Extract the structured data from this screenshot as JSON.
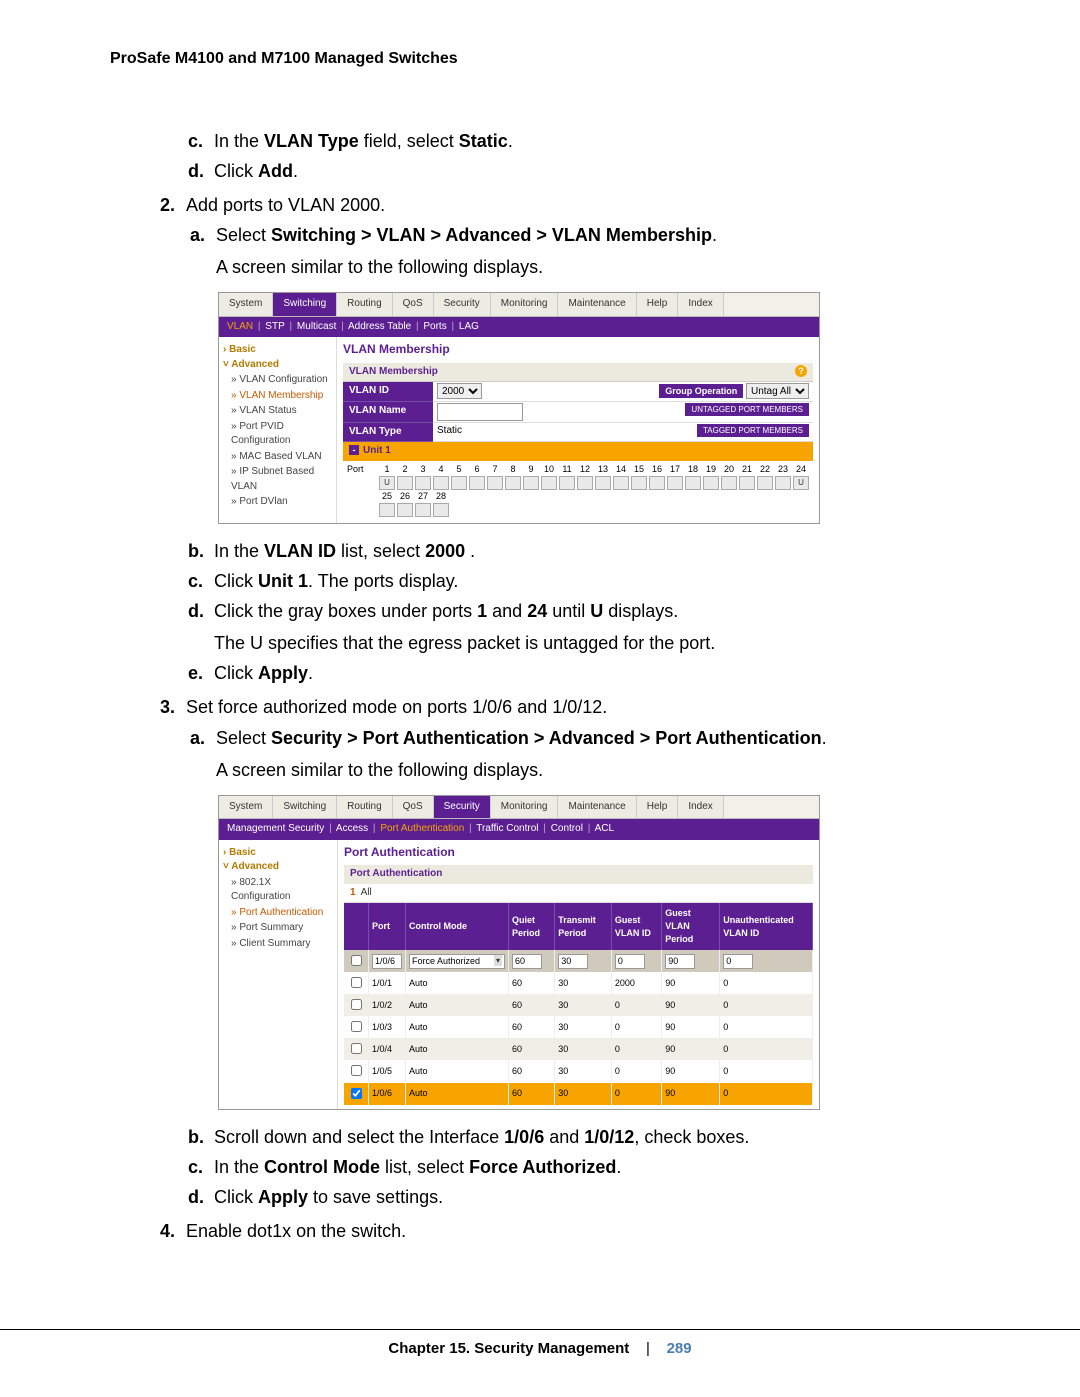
{
  "header": "ProSafe M4100 and M7100 Managed Switches",
  "footer": {
    "chapter": "Chapter 15.  Security Management",
    "page": "289"
  },
  "instr": {
    "c1": "In the ",
    "c1b1": "VLAN Type",
    "c1mid": " field, select ",
    "c1b2": "Static",
    "c1end": ".",
    "d1": "Click ",
    "d1b": "Add",
    "d1end": ".",
    "step2": "Add ports to VLAN 2000.",
    "a2": "Select ",
    "a2b": "Switching > VLAN > Advanced > VLAN Membership",
    "a2end": ".",
    "a2line": "A screen similar to the following displays.",
    "b2": "In the ",
    "b2b1": "VLAN ID",
    "b2mid": " list, select ",
    "b2b2": "2000",
    "b2end": " .",
    "c2": "Click ",
    "c2b": "Unit 1",
    "c2end": ". The ports display.",
    "d2a": "Click the gray boxes under ports ",
    "d2b1": "1",
    "d2mid": " and ",
    "d2b2": "24",
    "d2mid2": " until ",
    "d2b3": "U",
    "d2end": " displays.",
    "d2line": "The U specifies that the egress packet is untagged for the port.",
    "e2": "Click ",
    "e2b": "Apply",
    "e2end": ".",
    "step3": "Set force authorized mode on ports 1/0/6 and 1/0/12.",
    "a3": "Select ",
    "a3b": "Security > Port Authentication > Advanced > Port Authentication",
    "a3end": ".",
    "a3line": "A screen similar to the following displays.",
    "b3a": "Scroll down and select the Interface ",
    "b3b1": "1/0/6",
    "b3mid": " and ",
    "b3b2": "1/0/12",
    "b3end": ", check boxes.",
    "c3": "In the ",
    "c3b1": "Control Mode",
    "c3mid": " list, select ",
    "c3b2": "Force Authorized",
    "c3end": ".",
    "d3": "Click ",
    "d3b": "Apply",
    "d3end": " to save settings.",
    "step4": "Enable dot1x on the switch."
  },
  "ss1": {
    "tabs": [
      "System",
      "Switching",
      "Routing",
      "QoS",
      "Security",
      "Monitoring",
      "Maintenance",
      "Help",
      "Index"
    ],
    "active_tab": 1,
    "subbar": "VLAN | STP | Multicast | Address Table | Ports | LAG",
    "side_basic": "Basic",
    "side_adv": "Advanced",
    "side_items": [
      "» VLAN Configuration",
      "» VLAN Membership",
      "» VLAN Status",
      "» Port PVID Configuration",
      "» MAC Based VLAN",
      "» IP Subnet Based VLAN",
      "» Port DVlan"
    ],
    "side_selected": 1,
    "title": "VLAN Membership",
    "subtitle": "VLAN Membership",
    "fields": {
      "id_label": "VLAN ID",
      "id_value": "2000",
      "name_label": "VLAN Name",
      "name_value": "",
      "type_label": "VLAN Type",
      "type_value": "Static",
      "group_op_label": "Group Operation",
      "group_op_value": "Untag All",
      "btn_untag": "UNTAGGED PORT MEMBERS",
      "btn_tag": "TAGGED PORT MEMBERS"
    },
    "unit_label": "Unit 1",
    "port_numbers_row1": [
      "1",
      "2",
      "3",
      "4",
      "5",
      "6",
      "7",
      "8",
      "9",
      "10",
      "11",
      "12",
      "13",
      "14",
      "15",
      "16",
      "17",
      "18",
      "19",
      "20",
      "21",
      "22",
      "23",
      "24"
    ],
    "port_states_row1": [
      "U",
      "",
      "",
      "",
      "",
      "",
      "",
      "",
      "",
      "",
      "",
      "",
      "",
      "",
      "",
      "",
      "",
      "",
      "",
      "",
      "",
      "",
      "",
      "U"
    ],
    "port_numbers_row2": [
      "25",
      "26",
      "27",
      "28"
    ],
    "port_label": "Port"
  },
  "ss2": {
    "tabs": [
      "System",
      "Switching",
      "Routing",
      "QoS",
      "Security",
      "Monitoring",
      "Maintenance",
      "Help",
      "Index"
    ],
    "active_tab": 4,
    "subbar": "Management Security | Access | Port Authentication | Traffic Control | Control | ACL",
    "side_basic": "Basic",
    "side_adv": "Advanced",
    "side_items": [
      "» 802.1X Configuration",
      "» Port Authentication",
      "» Port Summary",
      "» Client Summary"
    ],
    "side_selected": 1,
    "title": "Port Authentication",
    "subtitle": "Port Authentication",
    "allrow_one": "1",
    "allrow_all": "All",
    "columns": [
      "",
      "Port",
      "Control Mode",
      "Quiet Period",
      "Transmit Period",
      "Guest VLAN ID",
      "Guest VLAN Period",
      "Unauthenticated VLAN ID"
    ],
    "editrow": {
      "port": "1/0/6",
      "mode": "Force Authorized",
      "quiet": "60",
      "trans": "30",
      "gvid": "0",
      "gvp": "90",
      "uvid": "0"
    },
    "rows": [
      {
        "chk": false,
        "port": "1/0/1",
        "mode": "Auto",
        "quiet": "60",
        "trans": "30",
        "gvid": "2000",
        "gvp": "90",
        "uvid": "0",
        "cls": "even"
      },
      {
        "chk": false,
        "port": "1/0/2",
        "mode": "Auto",
        "quiet": "60",
        "trans": "30",
        "gvid": "0",
        "gvp": "90",
        "uvid": "0",
        "cls": "odd"
      },
      {
        "chk": false,
        "port": "1/0/3",
        "mode": "Auto",
        "quiet": "60",
        "trans": "30",
        "gvid": "0",
        "gvp": "90",
        "uvid": "0",
        "cls": "even"
      },
      {
        "chk": false,
        "port": "1/0/4",
        "mode": "Auto",
        "quiet": "60",
        "trans": "30",
        "gvid": "0",
        "gvp": "90",
        "uvid": "0",
        "cls": "odd"
      },
      {
        "chk": false,
        "port": "1/0/5",
        "mode": "Auto",
        "quiet": "60",
        "trans": "30",
        "gvid": "0",
        "gvp": "90",
        "uvid": "0",
        "cls": "even"
      },
      {
        "chk": true,
        "port": "1/0/6",
        "mode": "Auto",
        "quiet": "60",
        "trans": "30",
        "gvid": "0",
        "gvp": "90",
        "uvid": "0",
        "cls": "sel"
      }
    ]
  }
}
